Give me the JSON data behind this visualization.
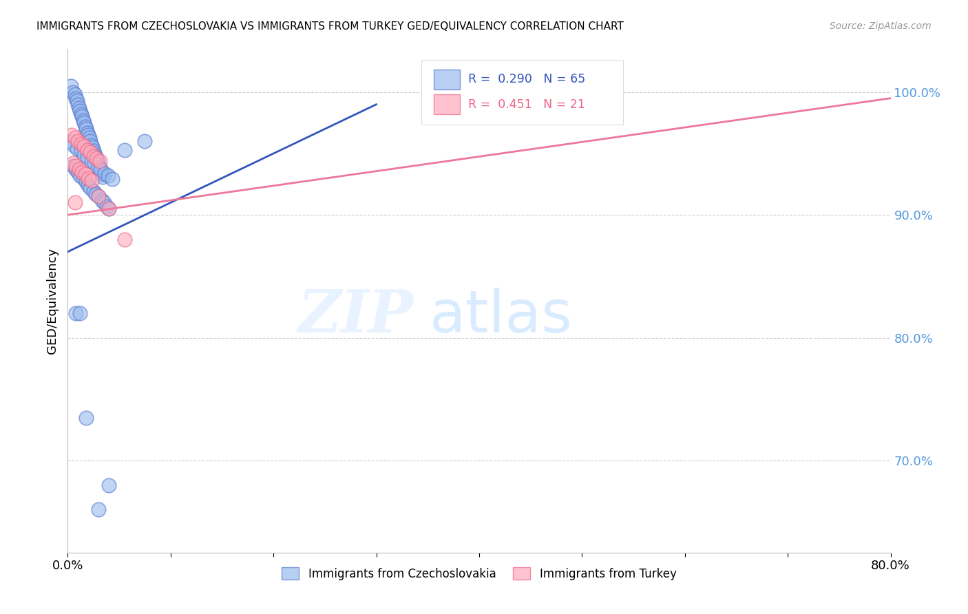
{
  "title": "IMMIGRANTS FROM CZECHOSLOVAKIA VS IMMIGRANTS FROM TURKEY GED/EQUIVALENCY CORRELATION CHART",
  "source": "Source: ZipAtlas.com",
  "ylabel": "GED/Equivalency",
  "xlim": [
    0.0,
    0.8
  ],
  "ylim": [
    0.625,
    1.035
  ],
  "yticks": [
    0.7,
    0.8,
    0.9,
    1.0
  ],
  "ytick_labels": [
    "70.0%",
    "80.0%",
    "90.0%",
    "100.0%"
  ],
  "xtick_positions": [
    0.0,
    0.1,
    0.2,
    0.3,
    0.4,
    0.5,
    0.6,
    0.7,
    0.8
  ],
  "xtick_labels": [
    "0.0%",
    "",
    "",
    "",
    "",
    "",
    "",
    "",
    "80.0%"
  ],
  "legend_blue_r": "0.290",
  "legend_blue_n": "65",
  "legend_pink_r": "0.451",
  "legend_pink_n": "21",
  "legend_label_blue": "Immigrants from Czechoslovakia",
  "legend_label_pink": "Immigrants from Turkey",
  "blue_color": "#99BBEE",
  "pink_color": "#FFAABB",
  "blue_edge_color": "#5577CC",
  "pink_edge_color": "#EE6688",
  "blue_line_color": "#3355BB",
  "pink_line_color": "#EE7799",
  "watermark_zip": "ZIP",
  "watermark_atlas": "atlas",
  "grid_color": "#CCCCCC",
  "right_tick_color": "#5599DD",
  "blue_scatter_x": [
    0.003,
    0.005,
    0.007,
    0.008,
    0.009,
    0.01,
    0.011,
    0.012,
    0.013,
    0.014,
    0.015,
    0.016,
    0.017,
    0.018,
    0.019,
    0.02,
    0.021,
    0.022,
    0.023,
    0.024,
    0.025,
    0.026,
    0.027,
    0.028,
    0.029,
    0.03,
    0.031,
    0.032,
    0.033,
    0.034,
    0.005,
    0.008,
    0.01,
    0.012,
    0.015,
    0.018,
    0.02,
    0.022,
    0.025,
    0.027,
    0.03,
    0.033,
    0.035,
    0.038,
    0.04,
    0.003,
    0.006,
    0.009,
    0.013,
    0.016,
    0.019,
    0.023,
    0.026,
    0.029,
    0.032,
    0.036,
    0.039,
    0.043,
    0.055,
    0.075,
    0.008,
    0.012,
    0.018,
    0.03,
    0.04
  ],
  "blue_scatter_y": [
    1.005,
    1.0,
    0.998,
    0.995,
    0.993,
    0.99,
    0.987,
    0.985,
    0.982,
    0.98,
    0.977,
    0.975,
    0.972,
    0.97,
    0.967,
    0.965,
    0.963,
    0.96,
    0.957,
    0.955,
    0.952,
    0.95,
    0.948,
    0.946,
    0.943,
    0.941,
    0.938,
    0.936,
    0.933,
    0.931,
    0.94,
    0.937,
    0.935,
    0.932,
    0.93,
    0.927,
    0.924,
    0.922,
    0.919,
    0.917,
    0.915,
    0.912,
    0.91,
    0.907,
    0.905,
    0.96,
    0.957,
    0.954,
    0.952,
    0.949,
    0.947,
    0.944,
    0.942,
    0.939,
    0.937,
    0.934,
    0.932,
    0.929,
    0.953,
    0.96,
    0.82,
    0.82,
    0.735,
    0.66,
    0.68
  ],
  "pink_scatter_x": [
    0.004,
    0.007,
    0.01,
    0.013,
    0.016,
    0.019,
    0.022,
    0.025,
    0.028,
    0.031,
    0.005,
    0.008,
    0.011,
    0.014,
    0.017,
    0.02,
    0.023,
    0.04,
    0.055,
    0.007,
    0.03
  ],
  "pink_scatter_y": [
    0.965,
    0.963,
    0.96,
    0.958,
    0.956,
    0.953,
    0.951,
    0.948,
    0.946,
    0.944,
    0.942,
    0.94,
    0.937,
    0.935,
    0.933,
    0.93,
    0.928,
    0.905,
    0.88,
    0.91,
    0.915
  ],
  "blue_trend_x": [
    0.0,
    0.3
  ],
  "blue_trend_y": [
    0.87,
    0.99
  ],
  "pink_trend_x": [
    0.0,
    0.8
  ],
  "pink_trend_y": [
    0.9,
    0.995
  ]
}
